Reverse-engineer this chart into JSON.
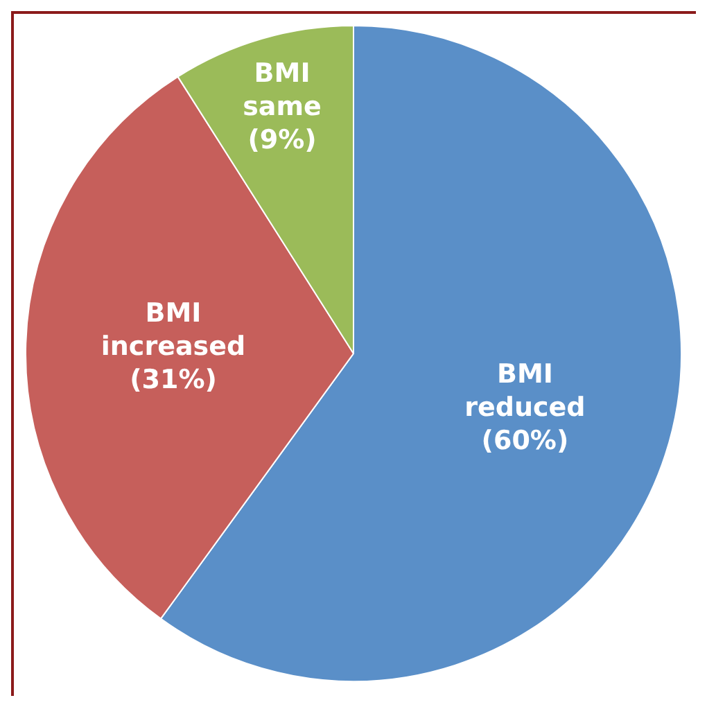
{
  "chart_data": {
    "type": "pie",
    "categories": [
      "BMI reduced",
      "BMI increased",
      "BMI same"
    ],
    "values": [
      60,
      31,
      9
    ],
    "colors": [
      "#5a8fc8",
      "#c65f5b",
      "#9bbb59"
    ],
    "value_labels": [
      "(60%)",
      "(31%)",
      "(9%)"
    ],
    "legend": false
  }
}
